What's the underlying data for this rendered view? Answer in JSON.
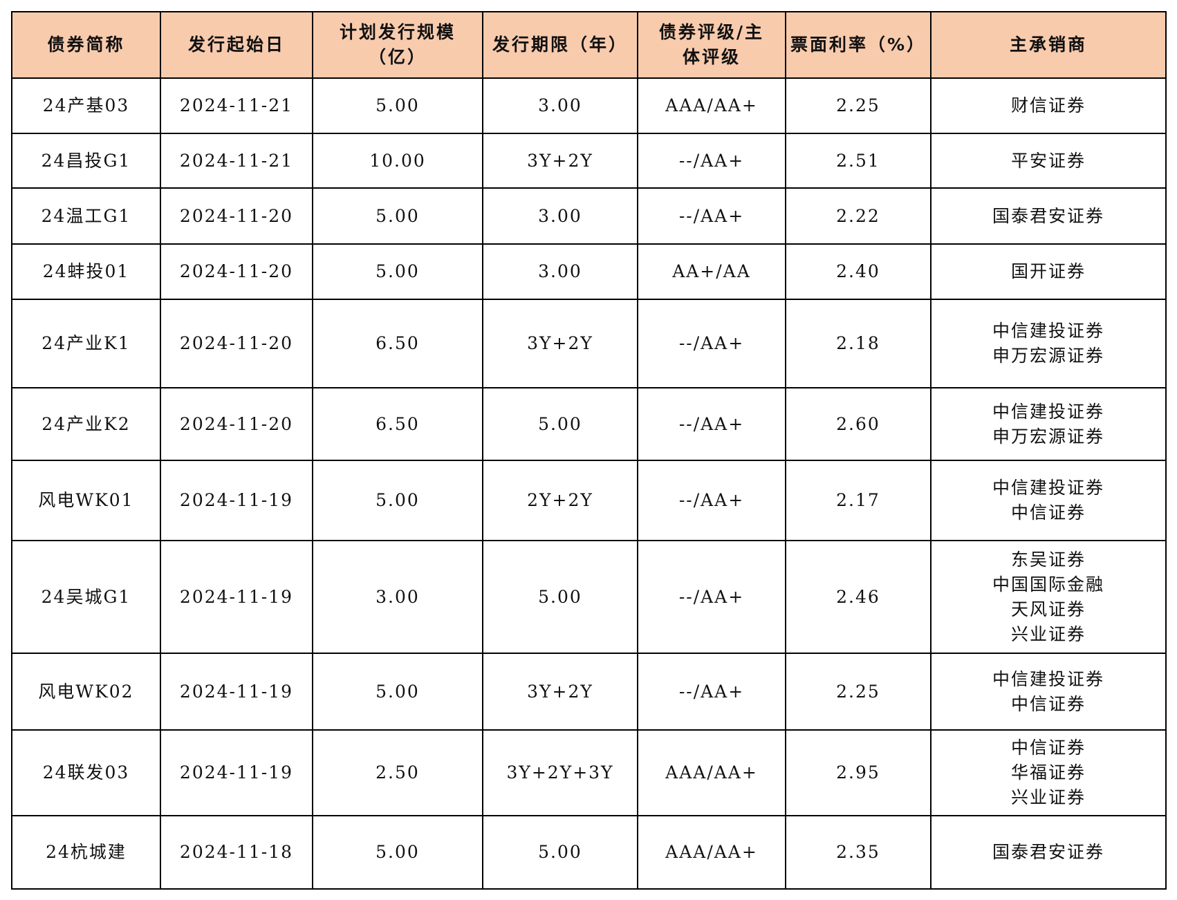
{
  "table": {
    "header": [
      [
        "债券简称"
      ],
      [
        "发行起始日"
      ],
      [
        "计划发行规模",
        "（亿）"
      ],
      [
        "发行期限（年）"
      ],
      [
        "债券评级/主",
        "体评级"
      ],
      [
        "票面利率（%）"
      ],
      [
        "主承销商"
      ]
    ],
    "rows": [
      [
        "24产基03",
        "2024-11-21",
        "5.00",
        "3.00",
        "AAA/AA+",
        "2.25",
        [
          "财信证券"
        ]
      ],
      [
        "24昌投G1",
        "2024-11-21",
        "10.00",
        "3Y+2Y",
        "--/AA+",
        "2.51",
        [
          "平安证券"
        ]
      ],
      [
        "24温工G1",
        "2024-11-20",
        "5.00",
        "3.00",
        "--/AA+",
        "2.22",
        [
          "国泰君安证券"
        ]
      ],
      [
        "24蚌投01",
        "2024-11-20",
        "5.00",
        "3.00",
        "AA+/AA",
        "2.40",
        [
          "国开证券"
        ]
      ],
      [
        "24产业K1",
        "2024-11-20",
        "6.50",
        "3Y+2Y",
        "--/AA+",
        "2.18",
        [
          "中信建投证券",
          "申万宏源证券"
        ]
      ],
      [
        "24产业K2",
        "2024-11-20",
        "6.50",
        "5.00",
        "--/AA+",
        "2.60",
        [
          "中信建投证券",
          "申万宏源证券"
        ]
      ],
      [
        "风电WK01",
        "2024-11-19",
        "5.00",
        "2Y+2Y",
        "--/AA+",
        "2.17",
        [
          "中信建投证券",
          "中信证券"
        ]
      ],
      [
        "24吴城G1",
        "2024-11-19",
        "3.00",
        "5.00",
        "--/AA+",
        "2.46",
        [
          "东吴证券",
          "中国国际金融",
          "天风证券",
          "兴业证券"
        ]
      ],
      [
        "风电WK02",
        "2024-11-19",
        "5.00",
        "3Y+2Y",
        "--/AA+",
        "2.25",
        [
          "中信建投证券",
          "中信证券"
        ]
      ],
      [
        "24联发03",
        "2024-11-19",
        "2.50",
        "3Y+2Y+3Y",
        "AAA/AA+",
        "2.95",
        [
          "中信证券",
          "华福证券",
          "兴业证券"
        ]
      ],
      [
        "24杭城建",
        "2024-11-18",
        "5.00",
        "5.00",
        "AAA/AA+",
        "2.35",
        [
          "国泰君安证券"
        ]
      ]
    ]
  }
}
